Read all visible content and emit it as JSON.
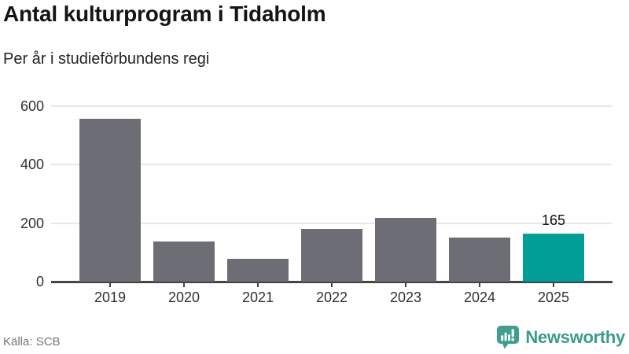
{
  "header": {
    "title": "Antal kulturprogram i Tidaholm",
    "subtitle": "Per år i studieförbundens regi"
  },
  "chart_data": {
    "type": "bar",
    "title": "Antal kulturprogram i Tidaholm",
    "subtitle": "Per år i studieförbundens regi",
    "categories": [
      "2019",
      "2020",
      "2021",
      "2022",
      "2023",
      "2024",
      "2025"
    ],
    "values": [
      557,
      137,
      77,
      180,
      217,
      150,
      165
    ],
    "xlabel": "",
    "ylabel": "",
    "ylim": [
      0,
      600
    ],
    "yticks": [
      0,
      200,
      400,
      600
    ],
    "grid": true,
    "legend": "none",
    "highlight_index": 6,
    "value_labels": {
      "6": "165"
    },
    "colors": {
      "bar": "#6d6d76",
      "highlight": "#009e96",
      "gridline": "#e7e7e9",
      "axis": "#424448",
      "tick": "#424448",
      "tick_label": "#2f3133",
      "value_label": "#111111"
    }
  },
  "footer": {
    "source": "Källa: SCB",
    "brand": "Newsworthy",
    "brand_color": "#3b9b8c",
    "logo_color": "#3f9e90"
  }
}
